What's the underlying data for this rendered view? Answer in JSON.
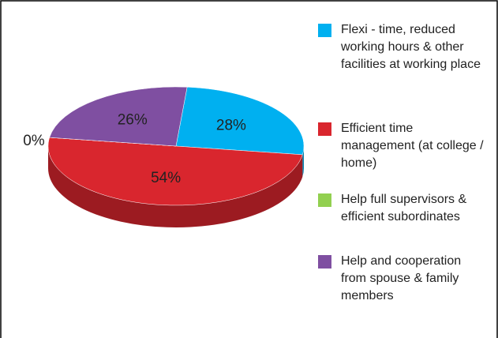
{
  "chart_data": {
    "type": "pie3d",
    "categories": [
      "Flexi - time, reduced working hours & other facilities at working place",
      "Efficient time management (at college / home)",
      "Help full supervisors & efficient subordinates",
      "Help and cooperation from spouse & family members"
    ],
    "values": [
      28,
      54,
      0,
      26
    ],
    "value_labels": [
      "28%",
      "54%",
      "0%",
      "26%"
    ],
    "colors": [
      "#00b0f0",
      "#d9262e",
      "#92d050",
      "#7f4fa1"
    ],
    "legend": "right"
  }
}
